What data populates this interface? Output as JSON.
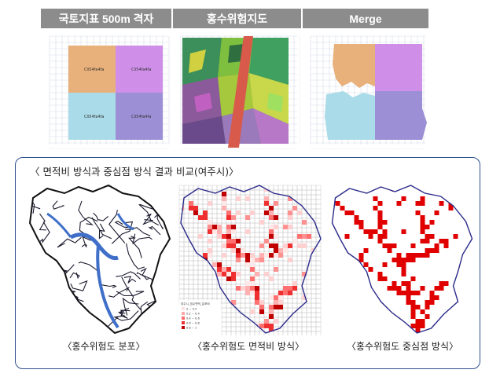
{
  "top": {
    "headers": [
      "국토지표 500m 격자",
      "홍수위험지도",
      "Merge"
    ],
    "grid_cell_label": "Cli54fa4fa"
  },
  "comparison": {
    "title": "〈 면적비 방식과 중심점 방식 결과 비교(여주시)〉",
    "captions": [
      "〈홍수위험도 분포〉",
      "〈홍수위험도 면적비 방식〉",
      "〈홍수위험도 중심점 방식〉"
    ],
    "legend": {
      "title": "여주시_침수면적_분포비",
      "items": [
        "0 ~ 0.2",
        "0.2 ~ 0.4",
        "0.4 ~ 0.6",
        "0.6 ~ 0.8",
        "0.8 ~ 1"
      ]
    }
  },
  "colors": {
    "header_bg": "#8c8c8c",
    "orange": "#e8b07a",
    "purple": "#cf8fe8",
    "cyan": "#a9dbe8",
    "violet": "#9c8fd6",
    "flood_blue": "#3f6fc8",
    "risk_red": "#e00000",
    "frame_border": "#2f4f8f"
  }
}
